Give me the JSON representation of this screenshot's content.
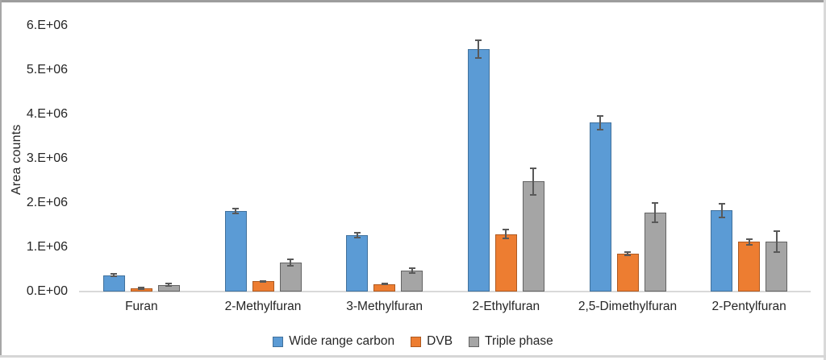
{
  "chart_data": {
    "type": "bar",
    "title": "",
    "xlabel": "",
    "ylabel": "Area counts",
    "ylim": [
      0,
      6000000
    ],
    "grid": false,
    "legend_position": "bottom",
    "y_ticks": [
      "0.E+00",
      "1.E+06",
      "2.E+06",
      "3.E+06",
      "4.E+06",
      "5.E+06",
      "6.E+06"
    ],
    "y_tick_values": [
      0,
      1000000,
      2000000,
      3000000,
      4000000,
      5000000,
      6000000
    ],
    "categories": [
      "Furan",
      "2-Methylfuran",
      "3-Methylfuran",
      "2-Ethylfuran",
      "2,5-Dimethylfuran",
      "2-Pentylfuran"
    ],
    "series": [
      {
        "name": "Wide range carbon",
        "color": "#5B9BD5",
        "border_color": "#41719C",
        "values": [
          370000,
          1820000,
          1270000,
          5480000,
          3810000,
          1830000
        ],
        "errors": [
          30000,
          50000,
          50000,
          200000,
          150000,
          150000
        ]
      },
      {
        "name": "DVB",
        "color": "#ED7D31",
        "border_color": "#AE5A21",
        "values": [
          70000,
          230000,
          170000,
          1300000,
          850000,
          1120000
        ],
        "errors": [
          15000,
          15000,
          15000,
          100000,
          40000,
          60000
        ]
      },
      {
        "name": "Triple phase",
        "color": "#A5A5A5",
        "border_color": "#636363",
        "values": [
          150000,
          660000,
          470000,
          2490000,
          1780000,
          1130000
        ],
        "errors": [
          30000,
          70000,
          50000,
          300000,
          220000,
          230000
        ]
      }
    ],
    "error_bar_color": "#595959",
    "axis_line_color": "#D9D9D9"
  }
}
